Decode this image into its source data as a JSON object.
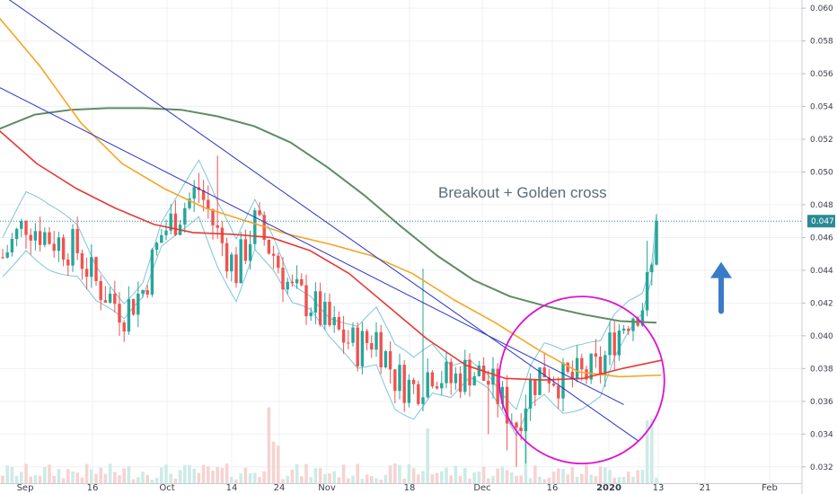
{
  "chart_data": {
    "type": "candlestick",
    "x_ticks": [
      "Sep",
      "16",
      "Oct",
      "14",
      "24",
      "Nov",
      "18",
      "Dec",
      "16",
      "2020",
      "13",
      "21",
      "Feb"
    ],
    "y_ticks": [
      0.032,
      0.034,
      0.036,
      0.038,
      0.04,
      0.042,
      0.044,
      0.046,
      0.048,
      0.05,
      0.052,
      0.054,
      0.056,
      0.058,
      0.06
    ],
    "ylim": [
      0.031,
      0.0605
    ],
    "last_price": 0.047,
    "last_price_label": "0.047",
    "annotation": "Breakout + Golden cross",
    "colors": {
      "up": "#26a69a",
      "down": "#ef5350",
      "ma_fast": "#e53935",
      "ma_mid": "#f5a623",
      "ma_slow": "#5e8c61",
      "bands": "#7fc4d6",
      "trendline": "#2b35c8",
      "ellipse": "#e010d0",
      "arrow": "#3a7bc8",
      "price_line": "#2a8a96"
    },
    "candles": [],
    "ma_slow": [
      0.0526,
      0.0535,
      0.0538,
      0.0539,
      0.0539,
      0.0538,
      0.0534,
      0.0528,
      0.0518,
      0.0503,
      0.0486,
      0.0467,
      0.0449,
      0.0434,
      0.0424,
      0.0418,
      0.0413,
      0.0409,
      0.0408
    ],
    "ma_mid": [
      0.0595,
      0.0565,
      0.053,
      0.0505,
      0.049,
      0.0478,
      0.047,
      0.0462,
      0.0456,
      0.0449,
      0.0438,
      0.0422,
      0.0408,
      0.0392,
      0.0378,
      0.0375,
      0.0376
    ],
    "ma_fast": [
      0.0526,
      0.0505,
      0.049,
      0.0478,
      0.0468,
      0.0463,
      0.0462,
      0.046,
      0.0452,
      0.0438,
      0.0418,
      0.0398,
      0.0382,
      0.0374,
      0.0373,
      0.0374,
      0.038,
      0.0385
    ],
    "trendlines": [
      {
        "from": {
          "day": -2,
          "price": 0.0612
        },
        "to": {
          "day": 136,
          "price": 0.0336
        }
      },
      {
        "from": {
          "day": -12,
          "price": 0.0568
        },
        "to": {
          "day": 133,
          "price": 0.0358
        }
      }
    ],
    "ellipse": {
      "center": {
        "day": 124,
        "price": 0.0373
      },
      "semi_axis_days": 17,
      "semi_axis_price": 0.0051
    },
    "arrow": {
      "day": 145,
      "from": 0.0415,
      "to": 0.0444
    }
  }
}
